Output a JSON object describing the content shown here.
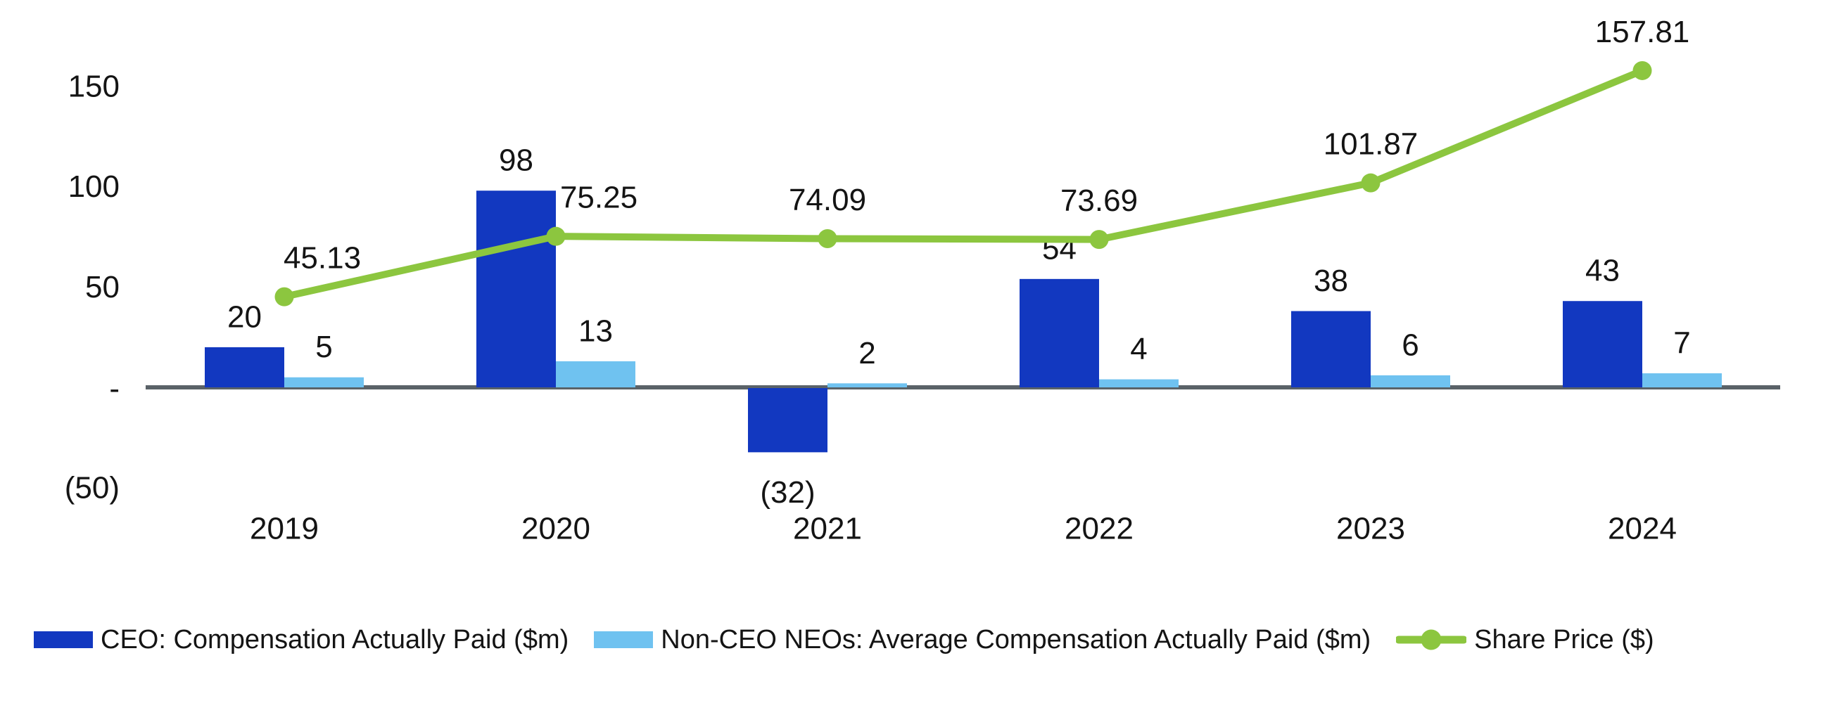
{
  "chart_data": {
    "type": "combo",
    "subtype": "grouped-bars-with-line",
    "title": "",
    "xlabel": "",
    "ylabel": "",
    "categories": [
      "2019",
      "2020",
      "2021",
      "2022",
      "2023",
      "2024"
    ],
    "series": [
      {
        "name": "CEO: Compensation Actually Paid ($m)",
        "type": "bar",
        "color": "#1238C0",
        "values": [
          20,
          98,
          -32,
          54,
          38,
          43
        ],
        "data_labels": [
          "20",
          "98",
          "(32)",
          "54",
          "38",
          "43"
        ]
      },
      {
        "name": "Non-CEO NEOs: Average Compensation Actually Paid ($m)",
        "type": "bar",
        "color": "#6FC2F0",
        "values": [
          5,
          13,
          2,
          4,
          6,
          7
        ],
        "data_labels": [
          "5",
          "13",
          "2",
          "4",
          "6",
          "7"
        ]
      },
      {
        "name": "Share Price ($)",
        "type": "line",
        "color": "#8CC63F",
        "marker": "circle",
        "values": [
          45.13,
          75.25,
          74.09,
          73.69,
          101.87,
          157.81
        ],
        "data_labels": [
          "45.13",
          "75.25",
          "74.09",
          "73.69",
          "101.87",
          "157.81"
        ]
      }
    ],
    "y_axis": {
      "tick_labels": [
        "150",
        "100",
        "50",
        "-",
        "(50)"
      ],
      "tick_values": [
        150,
        100,
        50,
        0,
        -50
      ],
      "negative_number_format": "parentheses",
      "range_visible": [
        -78,
        193
      ]
    },
    "grid": "off",
    "legend_position": "bottom"
  },
  "colors": {
    "ceo_bar": "#1238C0",
    "neo_bar": "#6FC2F0",
    "share_price_line": "#8CC63F",
    "axis_line": "#5A6268",
    "text": "#141414",
    "background": "#ffffff"
  },
  "legend": {
    "items": [
      {
        "label": "CEO: Compensation Actually Paid ($m)",
        "swatch": "dark-blue-rect"
      },
      {
        "label": "Non-CEO NEOs: Average Compensation Actually Paid ($m)",
        "swatch": "light-blue-rect"
      },
      {
        "label": "Share Price ($)",
        "swatch": "green-line-marker"
      }
    ]
  }
}
